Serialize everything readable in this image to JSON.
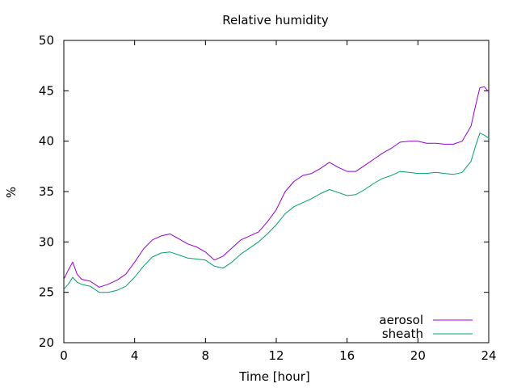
{
  "chart_data": {
    "type": "line",
    "title": "Relative humidity",
    "xlabel": "Time [hour]",
    "ylabel": "%",
    "xlim": [
      0,
      24
    ],
    "ylim": [
      20,
      50
    ],
    "xticks": [
      "0",
      "4",
      "8",
      "12",
      "16",
      "20",
      "24"
    ],
    "yticks": [
      "20",
      "25",
      "30",
      "35",
      "40",
      "45",
      "50"
    ],
    "grid": false,
    "legend_position": "bottom-right",
    "series": [
      {
        "name": "aerosol",
        "color": "#9400d3",
        "x": [
          0,
          0.25,
          0.5,
          0.75,
          1,
          1.5,
          2,
          2.5,
          3,
          3.5,
          4,
          4.5,
          5,
          5.5,
          6,
          6.5,
          7,
          7.5,
          8,
          8.5,
          9,
          9.5,
          10,
          10.5,
          11,
          11.5,
          12,
          12.5,
          13,
          13.5,
          14,
          14.5,
          15,
          15.5,
          16,
          16.5,
          17,
          17.5,
          18,
          18.5,
          19,
          19.5,
          20,
          20.5,
          21,
          21.5,
          22,
          22.5,
          23,
          23.25,
          23.5,
          23.75,
          24
        ],
        "y": [
          26.3,
          27.2,
          28.0,
          26.8,
          26.3,
          26.1,
          25.5,
          25.8,
          26.2,
          26.8,
          28.0,
          29.3,
          30.2,
          30.6,
          30.8,
          30.3,
          29.8,
          29.5,
          29.0,
          28.2,
          28.6,
          29.4,
          30.2,
          30.6,
          31.0,
          32.0,
          33.2,
          35.0,
          36.0,
          36.6,
          36.8,
          37.3,
          37.9,
          37.4,
          37.0,
          37.0,
          37.6,
          38.2,
          38.8,
          39.3,
          39.9,
          40.0,
          40.0,
          39.8,
          39.8,
          39.7,
          39.7,
          40.0,
          41.5,
          43.5,
          45.3,
          45.4,
          44.9
        ]
      },
      {
        "name": "sheath",
        "color": "#009e73",
        "x": [
          0,
          0.25,
          0.5,
          0.75,
          1,
          1.5,
          2,
          2.5,
          3,
          3.5,
          4,
          4.5,
          5,
          5.5,
          6,
          6.5,
          7,
          7.5,
          8,
          8.5,
          9,
          9.5,
          10,
          10.5,
          11,
          11.5,
          12,
          12.5,
          13,
          13.5,
          14,
          14.5,
          15,
          15.5,
          16,
          16.5,
          17,
          17.5,
          18,
          18.5,
          19,
          19.5,
          20,
          20.5,
          21,
          21.5,
          22,
          22.5,
          23,
          23.25,
          23.5,
          23.75,
          24
        ],
        "y": [
          25.3,
          25.8,
          26.5,
          26.0,
          25.8,
          25.6,
          25.0,
          25.0,
          25.2,
          25.6,
          26.5,
          27.6,
          28.5,
          28.9,
          29.0,
          28.7,
          28.4,
          28.3,
          28.2,
          27.6,
          27.4,
          28.0,
          28.8,
          29.4,
          30.0,
          30.8,
          31.7,
          32.8,
          33.5,
          33.9,
          34.3,
          34.8,
          35.2,
          34.9,
          34.6,
          34.7,
          35.2,
          35.8,
          36.3,
          36.6,
          37.0,
          36.9,
          36.8,
          36.8,
          36.9,
          36.8,
          36.7,
          36.9,
          38.0,
          39.5,
          40.8,
          40.6,
          40.3
        ]
      }
    ]
  }
}
